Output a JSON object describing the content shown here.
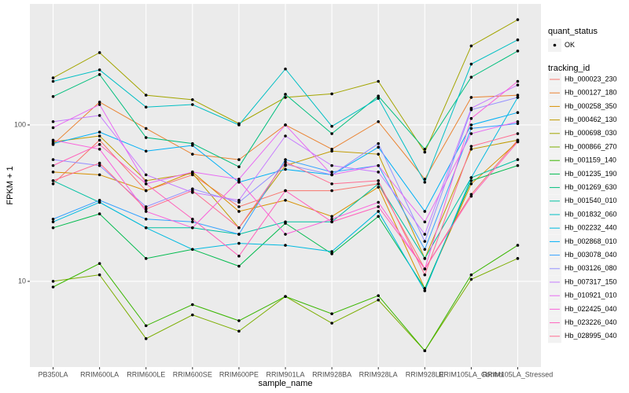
{
  "chart_data": {
    "type": "line",
    "x_label": "sample_name",
    "y_label": "FPKM + 1",
    "log_y": true,
    "grid": true,
    "legend": "right",
    "shape_legend_title": "quant_status",
    "shape_legend_labels": [
      "OK"
    ],
    "color_legend_title": "tracking_id",
    "ylim": [
      2.83,
      594
    ],
    "yticks": [
      10,
      100
    ],
    "categories": [
      "PB350LA",
      "RRIM600LA",
      "RRIM600LE",
      "RRIM600SE",
      "RRIM600PE",
      "RRIM901LA",
      "RRIM928BA",
      "RRIM928LA",
      "RRIM928LE",
      "RRIM105LA_Control",
      "RRIM105LA_Stressed"
    ],
    "series": [
      {
        "name": "Hb_000023_230",
        "color": "#F8766D",
        "values": [
          42,
          80,
          38,
          48,
          30,
          38,
          38,
          42,
          12,
          36,
          80
        ]
      },
      {
        "name": "Hb_000127_180",
        "color": "#EA8331",
        "values": [
          75,
          140,
          95,
          65,
          60,
          100,
          70,
          105,
          45,
          150,
          155
        ]
      },
      {
        "name": "Hb_000258_350",
        "color": "#D89000",
        "values": [
          50,
          48,
          38,
          50,
          28,
          33,
          26,
          40,
          9,
          42,
          78
        ]
      },
      {
        "name": "Hb_000462_130",
        "color": "#C09B00",
        "values": [
          78,
          85,
          44,
          49,
          22,
          55,
          68,
          65,
          14,
          70,
          80
        ]
      },
      {
        "name": "Hb_000698_030",
        "color": "#A3A500",
        "values": [
          200,
          290,
          155,
          145,
          102,
          150,
          158,
          190,
          67,
          320,
          471
        ]
      },
      {
        "name": "Hb_000866_270",
        "color": "#7CAE00",
        "values": [
          10,
          11,
          4.3,
          6.1,
          4.8,
          8,
          5.4,
          7.6,
          3.6,
          10.3,
          14
        ]
      },
      {
        "name": "Hb_001159_140",
        "color": "#39B600",
        "values": [
          9.2,
          13,
          5.2,
          7.1,
          5.6,
          8,
          6.2,
          8.1,
          3.6,
          11,
          17
        ]
      },
      {
        "name": "Hb_001235_190",
        "color": "#00BB4E",
        "values": [
          22,
          27,
          14,
          16,
          12.5,
          23.5,
          15,
          26,
          9,
          44,
          55
        ]
      },
      {
        "name": "Hb_001269_630",
        "color": "#00BF7D",
        "values": [
          152,
          210,
          83,
          76,
          54,
          157,
          88,
          153,
          70,
          202,
          297
        ]
      },
      {
        "name": "Hb_001540_010",
        "color": "#00C1A3",
        "values": [
          44,
          32,
          22,
          22,
          20,
          24,
          24,
          42,
          14,
          46,
          60
        ]
      },
      {
        "name": "Hb_001832_060",
        "color": "#00BFC4",
        "values": [
          190,
          225,
          130,
          135,
          100,
          228,
          98,
          148,
          43,
          245,
          350
        ]
      },
      {
        "name": "Hb_002232_440",
        "color": "#00BAE0",
        "values": [
          24,
          32,
          22,
          16,
          17.5,
          17,
          15.5,
          28,
          8.7,
          46,
          150
        ]
      },
      {
        "name": "Hb_002868_010",
        "color": "#00B0F6",
        "values": [
          76,
          90,
          68,
          74,
          43,
          52,
          48,
          72,
          28,
          100,
          120
        ]
      },
      {
        "name": "Hb_003078_040",
        "color": "#35A2FF",
        "values": [
          25,
          33,
          25,
          24,
          20,
          60,
          50,
          55,
          16,
          95,
          102
        ]
      },
      {
        "name": "Hb_003126_080",
        "color": "#9590FF",
        "values": [
          60,
          55,
          30,
          39,
          32,
          56,
          48,
          76,
          18,
          125,
          150
        ]
      },
      {
        "name": "Hb_007317_150",
        "color": "#C77CFF",
        "values": [
          105,
          115,
          48,
          37,
          33,
          85,
          55,
          50,
          20,
          128,
          180
        ]
      },
      {
        "name": "Hb_010921_010",
        "color": "#E76BF3",
        "values": [
          96,
          135,
          42,
          50,
          45,
          100,
          48,
          55,
          24,
          88,
          105
        ]
      },
      {
        "name": "Hb_022425_040",
        "color": "#FA62DB",
        "values": [
          80,
          70,
          28,
          22,
          44,
          20,
          25,
          32,
          12,
          110,
          190
        ]
      },
      {
        "name": "Hb_023226_040",
        "color": "#FF62BC",
        "values": [
          55,
          75,
          42,
          25,
          14.5,
          38,
          24,
          30,
          12,
          35,
          78
        ]
      },
      {
        "name": "Hb_028995_040",
        "color": "#FF6C91",
        "values": [
          44,
          57,
          29,
          38,
          22,
          58,
          42,
          44,
          11,
          73,
          88
        ]
      }
    ]
  }
}
